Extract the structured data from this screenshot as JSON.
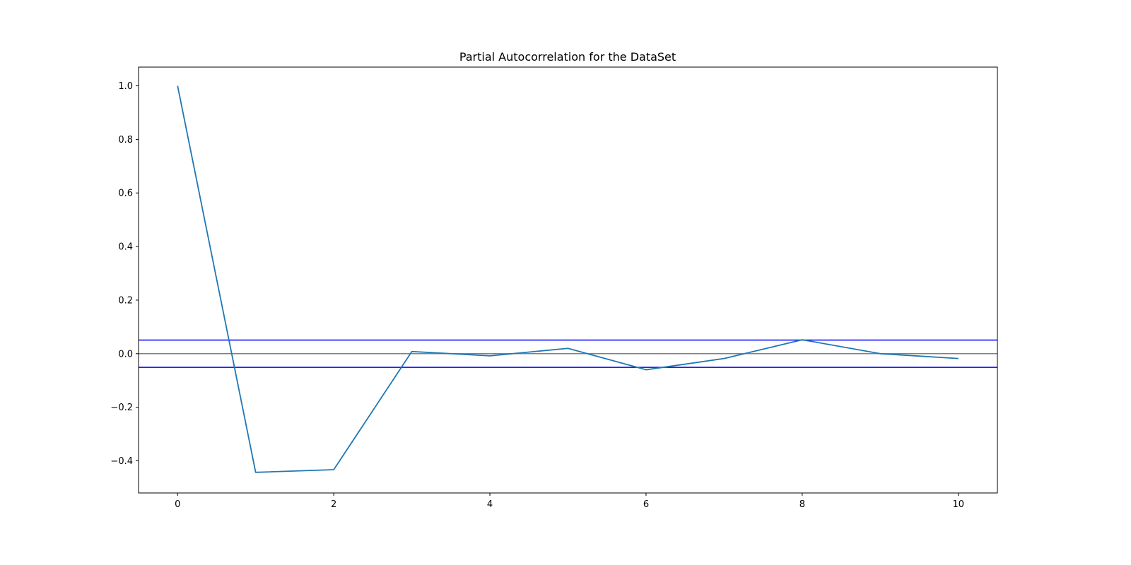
{
  "chart_data": {
    "type": "line",
    "title": "Partial Autocorrelation for the DataSet",
    "xlabel": "",
    "ylabel": "",
    "xlim": [
      -0.5,
      10.5
    ],
    "ylim": [
      -0.52,
      1.07
    ],
    "xticks": [
      0,
      2,
      4,
      6,
      8,
      10
    ],
    "xtick_labels": [
      "0",
      "2",
      "4",
      "6",
      "8",
      "10"
    ],
    "yticks": [
      1.0,
      0.8,
      0.6,
      0.4,
      0.2,
      0.0,
      -0.2,
      -0.4
    ],
    "ytick_labels": [
      "1.0",
      "0.8",
      "0.6",
      "0.4",
      "0.2",
      "0.0",
      "−0.2",
      "−0.4"
    ],
    "grid": false,
    "series": [
      {
        "color": "#1f77b4",
        "x": [
          0,
          1,
          2,
          3,
          4,
          5,
          6,
          7,
          8,
          9,
          10
        ],
        "y": [
          1.0,
          -0.443,
          -0.433,
          0.008,
          -0.008,
          0.02,
          -0.06,
          -0.018,
          0.052,
          0.0,
          -0.018
        ]
      }
    ],
    "reference_lines": [
      {
        "y": 0.0,
        "color": "#808080"
      },
      {
        "y": 0.051,
        "color": "#0000ff"
      },
      {
        "y": -0.051,
        "color": "#0000ff"
      }
    ]
  }
}
